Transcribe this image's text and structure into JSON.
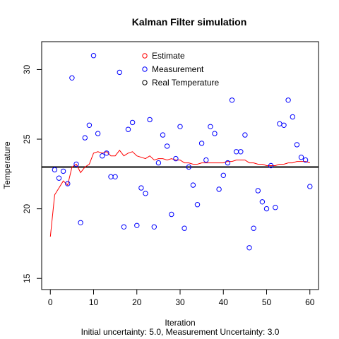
{
  "chart_data": {
    "type": "scatter",
    "title": "Kalman Filter simulation",
    "xlabel": "Iteration",
    "ylabel": "Temperature",
    "subtitle": "Initial uncertainty: 5.0, Measurement Uncertainty: 3.0",
    "xlim": [
      -2,
      62
    ],
    "ylim": [
      14.2,
      32.0
    ],
    "x_ticks": [
      0,
      10,
      20,
      30,
      40,
      50,
      60
    ],
    "y_ticks": [
      15,
      20,
      25,
      30
    ],
    "grid": false,
    "legend_position": "top-center",
    "legend": [
      {
        "label": "Estimate",
        "color": "#ff0000"
      },
      {
        "label": "Measurement",
        "color": "#0000ff"
      },
      {
        "label": "Real Temperature",
        "color": "#000000"
      }
    ],
    "real_temperature": 23.0,
    "series": [
      {
        "name": "Estimate",
        "kind": "line",
        "color": "#ff0000",
        "x": [
          0,
          1,
          2,
          3,
          4,
          5,
          6,
          7,
          8,
          9,
          10,
          11,
          12,
          13,
          14,
          15,
          16,
          17,
          18,
          19,
          20,
          21,
          22,
          23,
          24,
          25,
          26,
          27,
          28,
          29,
          30,
          31,
          32,
          33,
          34,
          35,
          36,
          37,
          38,
          39,
          40,
          41,
          42,
          43,
          44,
          45,
          46,
          47,
          48,
          49,
          50,
          51,
          52,
          53,
          54,
          55,
          56,
          57,
          58,
          59,
          60
        ],
        "y": [
          18.0,
          21.0,
          21.5,
          22.0,
          21.7,
          23.0,
          23.2,
          22.6,
          23.0,
          23.2,
          24.0,
          24.1,
          24.0,
          24.1,
          23.8,
          23.8,
          24.2,
          23.8,
          24.0,
          24.1,
          23.8,
          23.7,
          23.6,
          23.8,
          23.5,
          23.6,
          23.6,
          23.5,
          23.6,
          23.5,
          23.5,
          23.3,
          23.3,
          23.2,
          23.2,
          23.3,
          23.3,
          23.3,
          23.3,
          23.3,
          23.3,
          23.4,
          23.4,
          23.5,
          23.5,
          23.5,
          23.3,
          23.3,
          23.2,
          23.2,
          23.1,
          23.1,
          23.1,
          23.2,
          23.2,
          23.3,
          23.3,
          23.4,
          23.4,
          23.4,
          23.3
        ]
      },
      {
        "name": "Measurement",
        "kind": "points",
        "color": "#0000ff",
        "x": [
          1,
          2,
          3,
          4,
          5,
          6,
          7,
          8,
          9,
          10,
          11,
          12,
          13,
          14,
          15,
          16,
          17,
          18,
          19,
          20,
          21,
          22,
          23,
          24,
          25,
          26,
          27,
          28,
          29,
          30,
          31,
          32,
          33,
          34,
          35,
          36,
          37,
          38,
          39,
          40,
          41,
          42,
          43,
          44,
          45,
          46,
          47,
          48,
          49,
          50,
          51,
          52,
          53,
          54,
          55,
          56,
          57,
          58,
          59,
          60
        ],
        "y": [
          22.8,
          22.2,
          22.7,
          21.8,
          29.4,
          23.2,
          19.0,
          25.1,
          26.0,
          31.0,
          25.4,
          23.8,
          24.0,
          22.3,
          22.3,
          29.8,
          18.7,
          25.7,
          26.2,
          18.8,
          21.5,
          21.1,
          26.4,
          18.7,
          23.3,
          25.3,
          24.5,
          19.6,
          23.6,
          25.9,
          18.6,
          23.0,
          21.7,
          20.3,
          24.7,
          23.5,
          25.9,
          25.4,
          21.4,
          22.4,
          23.3,
          27.8,
          24.1,
          24.1,
          25.3,
          17.2,
          18.6,
          21.3,
          20.5,
          20.0,
          23.1,
          20.1,
          26.1,
          26.0,
          27.8,
          26.6,
          24.6,
          23.7,
          23.5,
          21.6
        ]
      }
    ]
  }
}
